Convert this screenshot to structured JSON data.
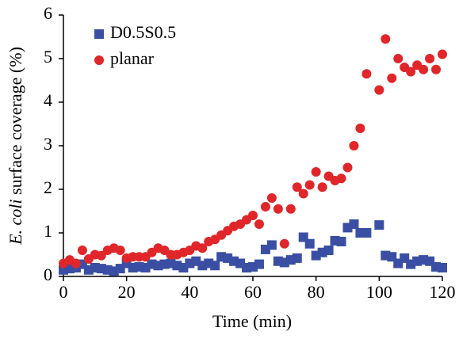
{
  "chart_data": {
    "type": "scatter",
    "x_label": "Time (min)",
    "y_label_italic": "E. coli",
    "y_label": "surface coverage (%)",
    "x": [
      0,
      2,
      4,
      6,
      8,
      10,
      12,
      14,
      16,
      18,
      20,
      22,
      24,
      26,
      28,
      30,
      32,
      34,
      36,
      38,
      40,
      42,
      44,
      46,
      48,
      50,
      52,
      54,
      56,
      58,
      60,
      62,
      64,
      66,
      68,
      70,
      72,
      74,
      76,
      78,
      80,
      82,
      84,
      86,
      88,
      90,
      92,
      94,
      96,
      98,
      100,
      102,
      104,
      106,
      108,
      110,
      112,
      114,
      116,
      118,
      120
    ],
    "series": [
      {
        "name": "D0.5S0.5",
        "color": "#3a4fa3",
        "marker": "square",
        "values": [
          0.15,
          0.18,
          0.2,
          0.28,
          0.15,
          0.2,
          0.18,
          0.15,
          0.12,
          0.18,
          0.3,
          0.2,
          0.22,
          0.2,
          0.28,
          0.25,
          0.28,
          0.3,
          0.25,
          0.2,
          0.3,
          0.35,
          0.25,
          0.3,
          0.25,
          0.45,
          0.42,
          0.35,
          0.3,
          0.2,
          0.22,
          0.28,
          0.62,
          0.72,
          0.35,
          0.32,
          0.38,
          0.42,
          0.9,
          0.75,
          0.48,
          0.55,
          0.6,
          0.82,
          0.8,
          1.12,
          1.2,
          1.0,
          1.0,
          null,
          1.18,
          0.48,
          0.45,
          0.3,
          0.42,
          0.28,
          0.35,
          0.38,
          0.35,
          0.22,
          0.2
        ]
      },
      {
        "name": "planar",
        "color": "#e0262a",
        "marker": "circle",
        "values": [
          0.3,
          0.38,
          0.3,
          0.6,
          0.4,
          0.5,
          0.48,
          0.6,
          0.65,
          0.6,
          0.42,
          0.45,
          0.45,
          0.45,
          0.55,
          0.65,
          0.6,
          0.5,
          0.5,
          0.55,
          0.6,
          0.7,
          0.65,
          0.8,
          0.85,
          0.95,
          1.05,
          1.15,
          1.2,
          1.3,
          1.4,
          1.2,
          1.6,
          1.8,
          1.55,
          0.75,
          1.55,
          2.05,
          1.9,
          2.1,
          2.4,
          2.05,
          2.3,
          2.2,
          2.25,
          2.5,
          3.0,
          3.4,
          4.65,
          null,
          4.28,
          5.45,
          4.55,
          5.0,
          4.8,
          4.7,
          4.85,
          4.75,
          5.0,
          4.75,
          5.1
        ]
      }
    ],
    "xlim": [
      0,
      120
    ],
    "xticks": [
      0,
      20,
      40,
      60,
      80,
      100,
      120
    ],
    "ylim": [
      0,
      6
    ],
    "yticks": [
      0,
      1,
      2,
      3,
      4,
      5,
      6
    ],
    "grid": false,
    "legend": "upper-left"
  }
}
